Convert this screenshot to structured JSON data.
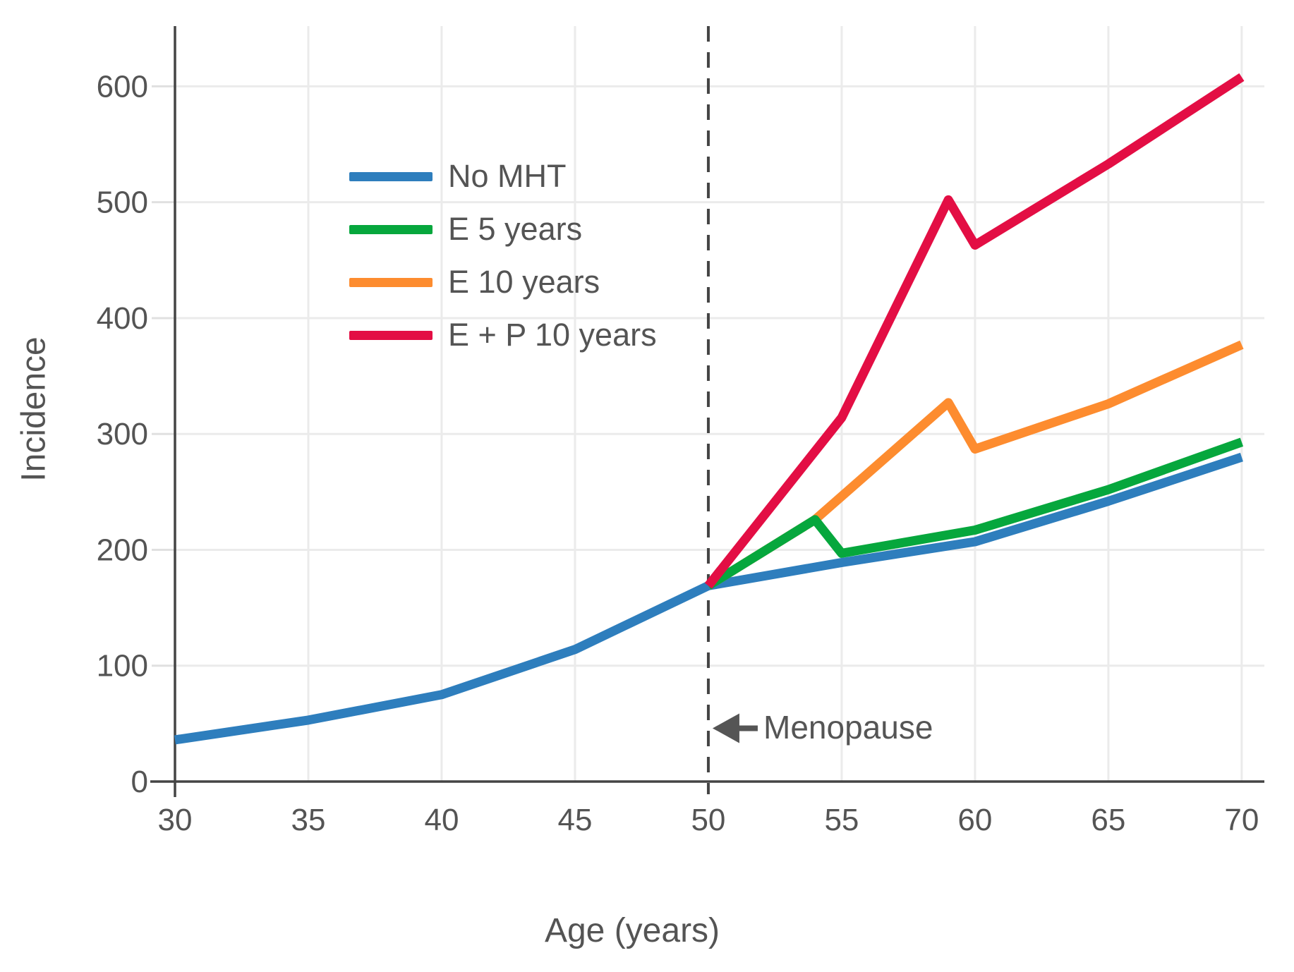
{
  "chart_data": {
    "type": "line",
    "title": "",
    "xlabel": "Age (years)",
    "ylabel": "Incidence",
    "xlim": [
      30,
      70.85
    ],
    "ylim": [
      0,
      652
    ],
    "xticks": [
      30,
      35,
      40,
      45,
      50,
      55,
      60,
      65,
      70
    ],
    "yticks": [
      0,
      100,
      200,
      300,
      400,
      500,
      600
    ],
    "grid": true,
    "legend_position": "upper-left-inside",
    "vline": {
      "x": 50,
      "style": "dashed",
      "color": "#444444"
    },
    "annotation": {
      "text": "Menopause",
      "x": 50,
      "y_value": 46,
      "arrow_direction": "left"
    },
    "series": [
      {
        "name": "No MHT",
        "color": "#2e7ebd",
        "z": 1,
        "points": [
          [
            30,
            36
          ],
          [
            35,
            53
          ],
          [
            40,
            75
          ],
          [
            45,
            114
          ],
          [
            50,
            169
          ],
          [
            55,
            189
          ],
          [
            60,
            207
          ],
          [
            65,
            242
          ],
          [
            70,
            280
          ]
        ]
      },
      {
        "name": "E 5 years",
        "color": "#06a73d",
        "z": 3,
        "points": [
          [
            50,
            169
          ],
          [
            54,
            226
          ],
          [
            55,
            197
          ],
          [
            60,
            217
          ],
          [
            65,
            252
          ],
          [
            70,
            293
          ]
        ]
      },
      {
        "name": "E 10 years",
        "color": "#fd8c2f",
        "z": 2,
        "points": [
          [
            50,
            169
          ],
          [
            54,
            226
          ],
          [
            59,
            327
          ],
          [
            60,
            287
          ],
          [
            65,
            326
          ],
          [
            70,
            377
          ]
        ]
      },
      {
        "name": "E + P 10 years",
        "color": "#e30e44",
        "z": 4,
        "points": [
          [
            50,
            169
          ],
          [
            55,
            314
          ],
          [
            59,
            502
          ],
          [
            60,
            463
          ],
          [
            65,
            533
          ],
          [
            70,
            608
          ]
        ]
      }
    ],
    "style": {
      "grid_color": "#ebebeb",
      "tick_stub_color": "#e0e0e0",
      "axis_color": "#444444",
      "text_color": "#545454",
      "annotation_color": "#555555",
      "line_width": 13
    }
  }
}
